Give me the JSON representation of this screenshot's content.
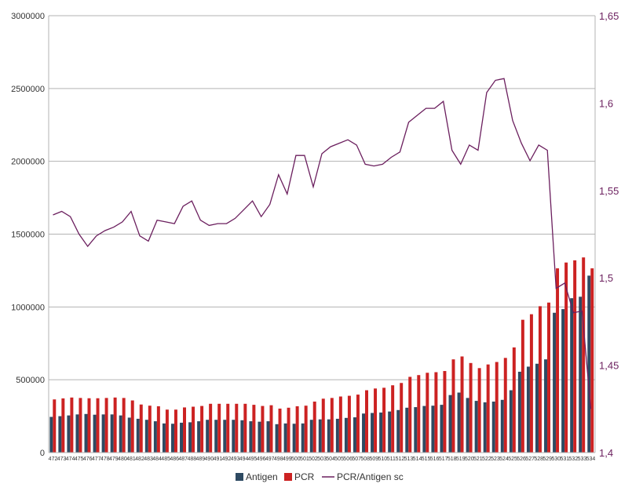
{
  "chart_data": {
    "type": "bar",
    "title": "",
    "xlabel": "",
    "ylabel": "",
    "ylim": [
      0,
      3000000
    ],
    "y2lim": [
      1.4,
      1.65
    ],
    "y_ticks": [
      "0",
      "500000",
      "1000000",
      "1500000",
      "2000000",
      "2500000",
      "3000000"
    ],
    "y2_ticks": [
      "1,4",
      "1,45",
      "1,5",
      "1,55",
      "1,6",
      "1,65"
    ],
    "grid": true,
    "legend_position": "bottom",
    "categories": [
      "472",
      "473",
      "474",
      "475",
      "476",
      "477",
      "478",
      "479",
      "480",
      "481",
      "482",
      "483",
      "484",
      "485",
      "486",
      "487",
      "488",
      "489",
      "490",
      "491",
      "492",
      "493",
      "494",
      "495",
      "496",
      "497",
      "498",
      "499",
      "500",
      "501",
      "502",
      "503",
      "504",
      "505",
      "506",
      "507",
      "508",
      "509",
      "510",
      "511",
      "512",
      "513",
      "514",
      "515",
      "516",
      "517",
      "518",
      "519",
      "520",
      "521",
      "522",
      "523",
      "524",
      "525",
      "526",
      "527",
      "528",
      "529",
      "530",
      "531",
      "532",
      "533",
      "534"
    ],
    "series": [
      {
        "name": "Antigen",
        "color": "#2e4a62",
        "values": [
          245000,
          250000,
          255000,
          262000,
          265000,
          260000,
          262000,
          262000,
          255000,
          240000,
          232000,
          225000,
          215000,
          200000,
          198000,
          205000,
          208000,
          215000,
          225000,
          225000,
          225000,
          225000,
          222000,
          215000,
          212000,
          215000,
          195000,
          200000,
          198000,
          200000,
          225000,
          228000,
          228000,
          232000,
          238000,
          242000,
          268000,
          272000,
          275000,
          282000,
          292000,
          308000,
          312000,
          320000,
          322000,
          328000,
          395000,
          412000,
          375000,
          355000,
          345000,
          350000,
          362000,
          428000,
          555000,
          590000,
          610000,
          640000,
          960000,
          985000,
          1060000,
          1070000,
          1215000
        ]
      },
      {
        "name": "PCR",
        "color": "#cc2222",
        "values": [
          365000,
          372000,
          378000,
          375000,
          373000,
          373000,
          375000,
          378000,
          375000,
          358000,
          330000,
          322000,
          318000,
          295000,
          295000,
          310000,
          315000,
          320000,
          335000,
          335000,
          335000,
          335000,
          335000,
          328000,
          320000,
          325000,
          302000,
          308000,
          318000,
          322000,
          350000,
          370000,
          375000,
          385000,
          390000,
          398000,
          428000,
          440000,
          445000,
          462000,
          478000,
          520000,
          532000,
          548000,
          552000,
          560000,
          640000,
          660000,
          615000,
          580000,
          605000,
          622000,
          650000,
          722000,
          912000,
          950000,
          1005000,
          1030000,
          1265000,
          1305000,
          1320000,
          1340000,
          1265000
        ]
      },
      {
        "name": "PCR/Antigen sc",
        "color": "#6b1f5e",
        "axis": "secondary",
        "values": [
          1.536,
          1.538,
          1.535,
          1.525,
          1.518,
          1.524,
          1.527,
          1.529,
          1.532,
          1.538,
          1.524,
          1.521,
          1.533,
          1.532,
          1.531,
          1.541,
          1.544,
          1.533,
          1.53,
          1.531,
          1.531,
          1.534,
          1.539,
          1.544,
          1.535,
          1.542,
          1.559,
          1.548,
          1.57,
          1.57,
          1.552,
          1.571,
          1.575,
          1.577,
          1.579,
          1.576,
          1.565,
          1.564,
          1.565,
          1.569,
          1.572,
          1.589,
          1.593,
          1.597,
          1.597,
          1.601,
          1.573,
          1.565,
          1.576,
          1.573,
          1.606,
          1.613,
          1.614,
          1.59,
          1.577,
          1.567,
          1.576,
          1.573,
          1.494,
          1.497,
          1.48,
          1.481,
          1.425
        ]
      }
    ]
  }
}
